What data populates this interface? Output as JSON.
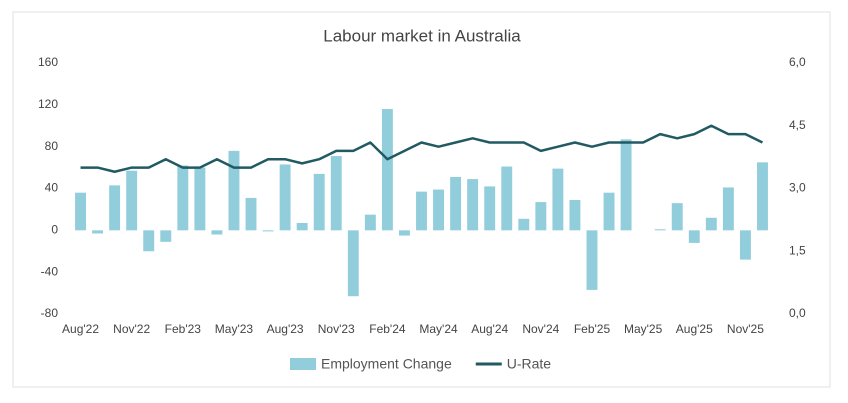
{
  "chart_data": {
    "type": "combo",
    "title": "Labour market in Australia",
    "categories": [
      "Aug'22",
      null,
      null,
      "Nov'22",
      null,
      null,
      "Feb'23",
      null,
      null,
      "May'23",
      null,
      null,
      "Aug'23",
      null,
      null,
      "Nov'23",
      null,
      null,
      "Feb'24",
      null,
      null,
      "May'24",
      null,
      null,
      "Aug'24",
      null,
      null,
      "Nov'24",
      null,
      null,
      "Feb'25",
      null,
      null,
      "May'25",
      null,
      null,
      "Aug'25",
      null,
      null,
      "Nov'25",
      null
    ],
    "series": [
      {
        "name": "Employment Change",
        "type": "bar",
        "color": "#92cddc",
        "values": [
          36,
          -3,
          43,
          57,
          -20,
          -11,
          62,
          60,
          -4,
          76,
          31,
          -1,
          63,
          7,
          54,
          71,
          -63,
          15,
          116,
          -5,
          37,
          39,
          51,
          49,
          42,
          61,
          11,
          27,
          59,
          29,
          -57,
          36,
          87,
          0,
          1,
          26,
          -12,
          12,
          41,
          -28,
          65
        ]
      },
      {
        "name": "U-Rate",
        "type": "line",
        "axis": "y2",
        "color": "#215a63",
        "values": [
          3.5,
          3.5,
          3.4,
          3.5,
          3.5,
          3.7,
          3.5,
          3.5,
          3.7,
          3.5,
          3.5,
          3.7,
          3.7,
          3.6,
          3.7,
          3.9,
          3.9,
          4.1,
          3.7,
          3.9,
          4.1,
          4.0,
          4.1,
          4.2,
          4.1,
          4.1,
          4.1,
          3.9,
          4.0,
          4.1,
          4.0,
          4.1,
          4.1,
          4.1,
          4.3,
          4.2,
          4.3,
          4.5,
          4.3,
          4.3,
          4.1
        ]
      }
    ],
    "ylim": [
      -80,
      160
    ],
    "yticks": [
      -80,
      -40,
      0,
      40,
      80,
      120,
      160
    ],
    "y2lim": [
      0,
      6
    ],
    "y2ticks": [
      {
        "value": 0,
        "label": "0,0"
      },
      {
        "value": 1.5,
        "label": "1,5"
      },
      {
        "value": 3,
        "label": "3,0"
      },
      {
        "value": 4.5,
        "label": "4,5"
      },
      {
        "value": 6,
        "label": "6,0"
      }
    ],
    "legend": "bottom"
  }
}
